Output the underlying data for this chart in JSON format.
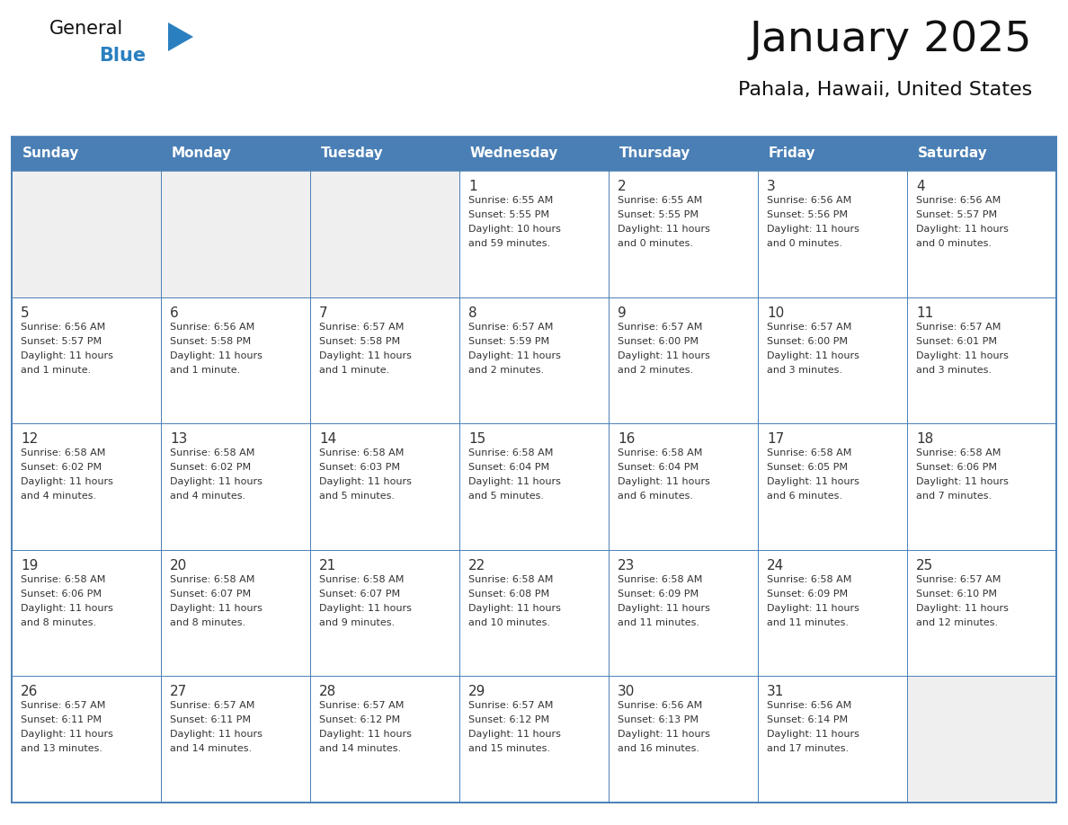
{
  "title": "January 2025",
  "subtitle": "Pahala, Hawaii, United States",
  "days_of_week": [
    "Sunday",
    "Monday",
    "Tuesday",
    "Wednesday",
    "Thursday",
    "Friday",
    "Saturday"
  ],
  "header_bg": "#4a7fb5",
  "header_text": "#ffffff",
  "cell_bg_light": "#efefef",
  "cell_bg_white": "#ffffff",
  "border_color": "#4a7fb5",
  "day_num_color": "#333333",
  "text_color": "#333333",
  "logo_general_color": "#111111",
  "logo_blue_color": "#2a7fc0",
  "weeks": [
    [
      {
        "day": null,
        "sunrise": null,
        "sunset": null,
        "daylight": null
      },
      {
        "day": null,
        "sunrise": null,
        "sunset": null,
        "daylight": null
      },
      {
        "day": null,
        "sunrise": null,
        "sunset": null,
        "daylight": null
      },
      {
        "day": 1,
        "sunrise": "6:55 AM",
        "sunset": "5:55 PM",
        "daylight": "10 hours and 59 minutes."
      },
      {
        "day": 2,
        "sunrise": "6:55 AM",
        "sunset": "5:55 PM",
        "daylight": "11 hours and 0 minutes."
      },
      {
        "day": 3,
        "sunrise": "6:56 AM",
        "sunset": "5:56 PM",
        "daylight": "11 hours and 0 minutes."
      },
      {
        "day": 4,
        "sunrise": "6:56 AM",
        "sunset": "5:57 PM",
        "daylight": "11 hours and 0 minutes."
      }
    ],
    [
      {
        "day": 5,
        "sunrise": "6:56 AM",
        "sunset": "5:57 PM",
        "daylight": "11 hours and 1 minute."
      },
      {
        "day": 6,
        "sunrise": "6:56 AM",
        "sunset": "5:58 PM",
        "daylight": "11 hours and 1 minute."
      },
      {
        "day": 7,
        "sunrise": "6:57 AM",
        "sunset": "5:58 PM",
        "daylight": "11 hours and 1 minute."
      },
      {
        "day": 8,
        "sunrise": "6:57 AM",
        "sunset": "5:59 PM",
        "daylight": "11 hours and 2 minutes."
      },
      {
        "day": 9,
        "sunrise": "6:57 AM",
        "sunset": "6:00 PM",
        "daylight": "11 hours and 2 minutes."
      },
      {
        "day": 10,
        "sunrise": "6:57 AM",
        "sunset": "6:00 PM",
        "daylight": "11 hours and 3 minutes."
      },
      {
        "day": 11,
        "sunrise": "6:57 AM",
        "sunset": "6:01 PM",
        "daylight": "11 hours and 3 minutes."
      }
    ],
    [
      {
        "day": 12,
        "sunrise": "6:58 AM",
        "sunset": "6:02 PM",
        "daylight": "11 hours and 4 minutes."
      },
      {
        "day": 13,
        "sunrise": "6:58 AM",
        "sunset": "6:02 PM",
        "daylight": "11 hours and 4 minutes."
      },
      {
        "day": 14,
        "sunrise": "6:58 AM",
        "sunset": "6:03 PM",
        "daylight": "11 hours and 5 minutes."
      },
      {
        "day": 15,
        "sunrise": "6:58 AM",
        "sunset": "6:04 PM",
        "daylight": "11 hours and 5 minutes."
      },
      {
        "day": 16,
        "sunrise": "6:58 AM",
        "sunset": "6:04 PM",
        "daylight": "11 hours and 6 minutes."
      },
      {
        "day": 17,
        "sunrise": "6:58 AM",
        "sunset": "6:05 PM",
        "daylight": "11 hours and 6 minutes."
      },
      {
        "day": 18,
        "sunrise": "6:58 AM",
        "sunset": "6:06 PM",
        "daylight": "11 hours and 7 minutes."
      }
    ],
    [
      {
        "day": 19,
        "sunrise": "6:58 AM",
        "sunset": "6:06 PM",
        "daylight": "11 hours and 8 minutes."
      },
      {
        "day": 20,
        "sunrise": "6:58 AM",
        "sunset": "6:07 PM",
        "daylight": "11 hours and 8 minutes."
      },
      {
        "day": 21,
        "sunrise": "6:58 AM",
        "sunset": "6:07 PM",
        "daylight": "11 hours and 9 minutes."
      },
      {
        "day": 22,
        "sunrise": "6:58 AM",
        "sunset": "6:08 PM",
        "daylight": "11 hours and 10 minutes."
      },
      {
        "day": 23,
        "sunrise": "6:58 AM",
        "sunset": "6:09 PM",
        "daylight": "11 hours and 11 minutes."
      },
      {
        "day": 24,
        "sunrise": "6:58 AM",
        "sunset": "6:09 PM",
        "daylight": "11 hours and 11 minutes."
      },
      {
        "day": 25,
        "sunrise": "6:57 AM",
        "sunset": "6:10 PM",
        "daylight": "11 hours and 12 minutes."
      }
    ],
    [
      {
        "day": 26,
        "sunrise": "6:57 AM",
        "sunset": "6:11 PM",
        "daylight": "11 hours and 13 minutes."
      },
      {
        "day": 27,
        "sunrise": "6:57 AM",
        "sunset": "6:11 PM",
        "daylight": "11 hours and 14 minutes."
      },
      {
        "day": 28,
        "sunrise": "6:57 AM",
        "sunset": "6:12 PM",
        "daylight": "11 hours and 14 minutes."
      },
      {
        "day": 29,
        "sunrise": "6:57 AM",
        "sunset": "6:12 PM",
        "daylight": "11 hours and 15 minutes."
      },
      {
        "day": 30,
        "sunrise": "6:56 AM",
        "sunset": "6:13 PM",
        "daylight": "11 hours and 16 minutes."
      },
      {
        "day": 31,
        "sunrise": "6:56 AM",
        "sunset": "6:14 PM",
        "daylight": "11 hours and 17 minutes."
      },
      {
        "day": null,
        "sunrise": null,
        "sunset": null,
        "daylight": null
      }
    ]
  ]
}
